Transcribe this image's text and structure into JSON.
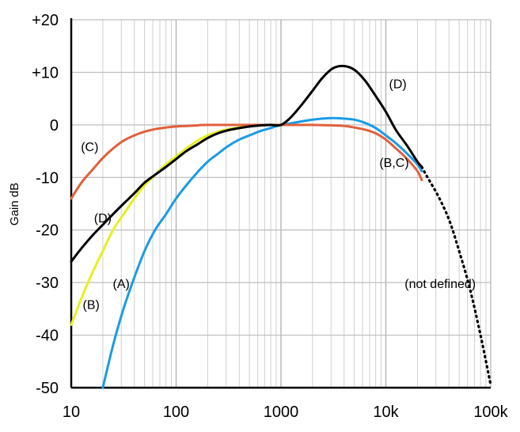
{
  "chart_data": {
    "type": "line",
    "title": "",
    "xlabel": "",
    "ylabel": "Gain dB",
    "x_scale": "log",
    "xlim": [
      10,
      100000
    ],
    "ylim": [
      -50,
      20
    ],
    "grid": true,
    "x_ticks": [
      {
        "value": 10,
        "label": "10"
      },
      {
        "value": 100,
        "label": "100"
      },
      {
        "value": 1000,
        "label": "1000"
      },
      {
        "value": 10000,
        "label": "10k"
      },
      {
        "value": 100000,
        "label": "100k"
      }
    ],
    "y_ticks": [
      {
        "value": 20,
        "label": "+20"
      },
      {
        "value": 10,
        "label": "+10"
      },
      {
        "value": 0,
        "label": "0"
      },
      {
        "value": -10,
        "label": "-10"
      },
      {
        "value": -20,
        "label": "-20"
      },
      {
        "value": -30,
        "label": "-30"
      },
      {
        "value": -40,
        "label": "-40"
      },
      {
        "value": -50,
        "label": "-50"
      }
    ],
    "series": [
      {
        "name": "(A)",
        "color": "#1a9be6",
        "style": "solid",
        "points": [
          [
            20,
            -50
          ],
          [
            25,
            -42
          ],
          [
            31.5,
            -35
          ],
          [
            40,
            -29
          ],
          [
            50,
            -24
          ],
          [
            63,
            -20
          ],
          [
            80,
            -17
          ],
          [
            100,
            -14
          ],
          [
            125,
            -11.5
          ],
          [
            160,
            -9
          ],
          [
            200,
            -7
          ],
          [
            250,
            -5.5
          ],
          [
            315,
            -4
          ],
          [
            400,
            -2.8
          ],
          [
            500,
            -2
          ],
          [
            630,
            -1.2
          ],
          [
            800,
            -0.6
          ],
          [
            1000,
            0
          ],
          [
            1250,
            0.3
          ],
          [
            1600,
            0.7
          ],
          [
            2000,
            1
          ],
          [
            2500,
            1.2
          ],
          [
            3150,
            1.3
          ],
          [
            4000,
            1.2
          ],
          [
            5000,
            1
          ],
          [
            6300,
            0.4
          ],
          [
            8000,
            -0.6
          ],
          [
            10000,
            -2
          ],
          [
            12500,
            -3.5
          ],
          [
            16000,
            -5.5
          ],
          [
            20000,
            -7.5
          ],
          [
            22000,
            -8.8
          ]
        ]
      },
      {
        "name": "(B)",
        "color": "#e6f01e",
        "style": "solid",
        "points": [
          [
            10,
            -38
          ],
          [
            12.5,
            -33
          ],
          [
            16,
            -28
          ],
          [
            20,
            -24
          ],
          [
            25,
            -20
          ],
          [
            31.5,
            -17
          ],
          [
            40,
            -14
          ],
          [
            50,
            -11.5
          ],
          [
            63,
            -9.5
          ],
          [
            80,
            -7.5
          ],
          [
            100,
            -6
          ],
          [
            125,
            -4.5
          ],
          [
            160,
            -3
          ],
          [
            200,
            -2
          ],
          [
            250,
            -1.3
          ],
          [
            315,
            -0.8
          ],
          [
            400,
            -0.5
          ],
          [
            500,
            -0.2
          ],
          [
            630,
            -0.1
          ],
          [
            800,
            0
          ],
          [
            1000,
            0
          ]
        ]
      },
      {
        "name": "(C)",
        "color": "#e0603c",
        "style": "solid",
        "points": [
          [
            10,
            -14
          ],
          [
            12.5,
            -11
          ],
          [
            16,
            -8.5
          ],
          [
            20,
            -6.3
          ],
          [
            25,
            -4.5
          ],
          [
            31.5,
            -3
          ],
          [
            40,
            -2
          ],
          [
            50,
            -1.3
          ],
          [
            63,
            -0.8
          ],
          [
            80,
            -0.5
          ],
          [
            100,
            -0.3
          ],
          [
            125,
            -0.2
          ],
          [
            160,
            -0.1
          ],
          [
            200,
            0
          ],
          [
            1000,
            0
          ],
          [
            2000,
            0
          ],
          [
            3150,
            -0.1
          ],
          [
            4000,
            -0.2
          ],
          [
            5000,
            -0.5
          ],
          [
            6300,
            -0.9
          ],
          [
            8000,
            -1.6
          ],
          [
            10000,
            -2.8
          ],
          [
            12500,
            -4.5
          ],
          [
            16000,
            -6.5
          ],
          [
            20000,
            -8.8
          ],
          [
            22000,
            -10.5
          ]
        ]
      },
      {
        "name": "(D)",
        "color": "#000000",
        "style": "solid",
        "points": [
          [
            10,
            -26
          ],
          [
            12.5,
            -23.5
          ],
          [
            16,
            -21
          ],
          [
            20,
            -19
          ],
          [
            25,
            -17
          ],
          [
            31.5,
            -15
          ],
          [
            40,
            -13
          ],
          [
            50,
            -11
          ],
          [
            63,
            -9.5
          ],
          [
            80,
            -8
          ],
          [
            100,
            -6.5
          ],
          [
            125,
            -5
          ],
          [
            160,
            -3.7
          ],
          [
            200,
            -2.5
          ],
          [
            250,
            -1.6
          ],
          [
            315,
            -1
          ],
          [
            400,
            -0.6
          ],
          [
            500,
            -0.3
          ],
          [
            630,
            -0.1
          ],
          [
            800,
            0
          ],
          [
            1000,
            0
          ],
          [
            1250,
            1.5
          ],
          [
            1600,
            4
          ],
          [
            2000,
            6.5
          ],
          [
            2500,
            9
          ],
          [
            3150,
            10.8
          ],
          [
            4000,
            11.2
          ],
          [
            5000,
            10.5
          ],
          [
            6300,
            8.5
          ],
          [
            8000,
            5.5
          ],
          [
            10000,
            2.5
          ],
          [
            12500,
            -1
          ],
          [
            16000,
            -4
          ],
          [
            20000,
            -7
          ],
          [
            22000,
            -8
          ]
        ]
      },
      {
        "name": "(not defined)",
        "color": "#000000",
        "style": "dotted",
        "points": [
          [
            22000,
            -8
          ],
          [
            25000,
            -10
          ],
          [
            31500,
            -13.5
          ],
          [
            40000,
            -18
          ],
          [
            50000,
            -24
          ],
          [
            63000,
            -31
          ],
          [
            80000,
            -40
          ],
          [
            100000,
            -49.5
          ]
        ]
      }
    ],
    "annotations": [
      {
        "text": "(A)",
        "x": 30,
        "y": -31
      },
      {
        "text": "(B)",
        "x": 15.5,
        "y": -35
      },
      {
        "text": "(C)",
        "x": 15,
        "y": -5
      },
      {
        "text": "(D)",
        "x": 20,
        "y": -18.5
      },
      {
        "text": "(D)",
        "x": 13000,
        "y": 7
      },
      {
        "text": "(B,C)",
        "x": 12000,
        "y": -8
      },
      {
        "text": "(not defined)",
        "x": 33000,
        "y": -31
      }
    ]
  }
}
